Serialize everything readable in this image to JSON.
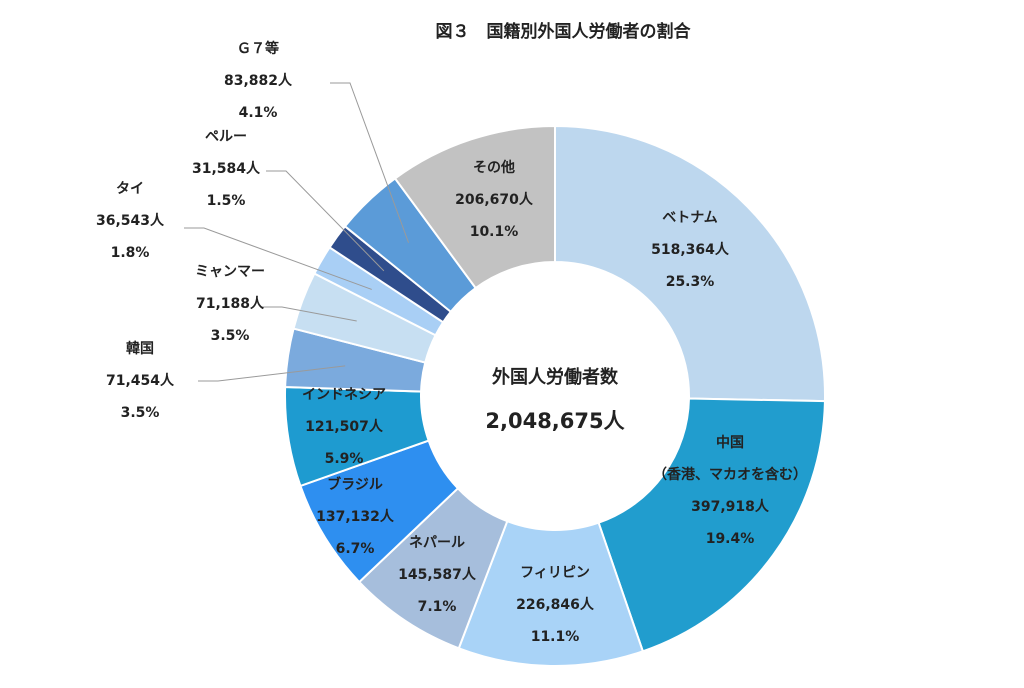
{
  "chart_data": {
    "type": "pie",
    "title": "図３　国籍別外国人労働者の割合",
    "center": {
      "title": "外国人労働者数",
      "total": "2,048,675人"
    },
    "unit": "人",
    "series": [
      {
        "name": "ベトナム",
        "value": 518364,
        "value_label": "518,364人",
        "percent": "25.3%",
        "color": "#BDD7EE"
      },
      {
        "name": "中国",
        "sub": "（香港、マカオを含む）",
        "value": 397918,
        "value_label": "397,918人",
        "percent": "19.4%",
        "color": "#219DCE"
      },
      {
        "name": "フィリピン",
        "value": 226846,
        "value_label": "226,846人",
        "percent": "11.1%",
        "color": "#A9D3F7"
      },
      {
        "name": "ネパール",
        "value": 145587,
        "value_label": "145,587人",
        "percent": "7.1%",
        "color": "#A6BEDC"
      },
      {
        "name": "ブラジル",
        "value": 137132,
        "value_label": "137,132人",
        "percent": "6.7%",
        "color": "#2E8FF0"
      },
      {
        "name": "インドネシア",
        "value": 121507,
        "value_label": "121,507人",
        "percent": "5.9%",
        "color": "#1E9BD0"
      },
      {
        "name": "韓国",
        "value": 71454,
        "value_label": "71,454人",
        "percent": "3.5%",
        "color": "#7BAADD"
      },
      {
        "name": "ミャンマー",
        "value": 71188,
        "value_label": "71,188人",
        "percent": "3.5%",
        "color": "#C7DFF2"
      },
      {
        "name": "タイ",
        "value": 36543,
        "value_label": "36,543人",
        "percent": "1.8%",
        "color": "#A9CFF5"
      },
      {
        "name": "ペルー",
        "value": 31584,
        "value_label": "31,584人",
        "percent": "1.5%",
        "color": "#2F4D8C"
      },
      {
        "name": "Ｇ７等",
        "value": 83882,
        "value_label": "83,882人",
        "percent": "4.1%",
        "color": "#5B9BD8"
      },
      {
        "name": "その他",
        "value": 206670,
        "value_label": "206,670人",
        "percent": "10.1%",
        "color": "#C2C2C2"
      }
    ]
  }
}
